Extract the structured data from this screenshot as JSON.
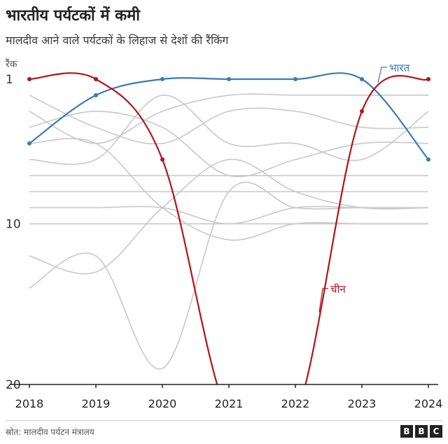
{
  "header": {
    "title": "भारतीय पर्यटकों में कमी",
    "subtitle": "मालदीव आने वाले पर्यटकों के लिहाज से देशों की रैंकिंग"
  },
  "footer": {
    "source": "स्रोत: मालदीव पर्यटन मंत्रालय",
    "logo_letters": [
      "B",
      "B",
      "C"
    ]
  },
  "chart_data": {
    "type": "line",
    "title": "",
    "xlabel": "",
    "ylabel": "रैंक",
    "x": [
      "2018",
      "2019",
      "2020",
      "2021",
      "2022",
      "2023",
      "2024"
    ],
    "y_reversed": true,
    "ylim": [
      1,
      20
    ],
    "y_ticks": [
      "1",
      "10",
      "20"
    ],
    "grid": false,
    "colors": {
      "india": "#3a7ab8",
      "china": "#b4131b",
      "others": "#c8c8c8",
      "axis": "#222222"
    },
    "series": [
      {
        "name": "भारत",
        "highlight": true,
        "values": [
          5,
          2,
          1,
          1,
          1,
          1,
          6
        ]
      },
      {
        "name": "चीन",
        "highlight": true,
        "values": [
          1,
          1,
          6,
          22,
          22,
          3,
          1
        ]
      },
      {
        "name": "",
        "highlight": false,
        "values": [
          3,
          5,
          3,
          2,
          2,
          2,
          2
        ]
      },
      {
        "name": "",
        "highlight": false,
        "values": [
          2,
          4,
          5,
          3,
          3,
          4,
          4
        ]
      },
      {
        "name": "",
        "highlight": false,
        "values": [
          6,
          6,
          2,
          5,
          5,
          6,
          3
        ]
      },
      {
        "name": "",
        "highlight": false,
        "values": [
          4,
          3,
          4,
          7,
          6,
          5,
          5
        ]
      },
      {
        "name": "",
        "highlight": false,
        "values": [
          7,
          7,
          7,
          7,
          7,
          7,
          7
        ]
      },
      {
        "name": "",
        "highlight": false,
        "values": [
          8,
          8,
          8,
          8,
          8,
          8,
          8
        ]
      },
      {
        "name": "",
        "highlight": false,
        "values": [
          9,
          9,
          9,
          10,
          9,
          9,
          9
        ]
      },
      {
        "name": "",
        "highlight": false,
        "values": [
          10,
          10,
          10,
          10,
          10,
          10,
          10
        ]
      },
      {
        "name": "",
        "highlight": false,
        "values": [
          12,
          13,
          9,
          6,
          8,
          9,
          9
        ]
      },
      {
        "name": "",
        "highlight": false,
        "values": [
          14,
          12,
          19,
          8,
          9,
          9,
          9
        ]
      },
      {
        "name": "",
        "highlight": false,
        "values": [
          5,
          5,
          9,
          11,
          10,
          10,
          10
        ]
      }
    ]
  }
}
